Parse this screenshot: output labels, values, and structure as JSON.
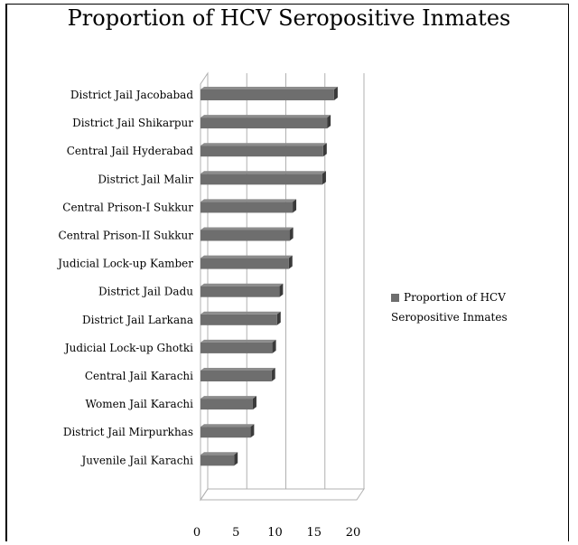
{
  "chart_data": {
    "type": "bar",
    "orientation": "horizontal",
    "title": "Proportion of HCV Seropositive Inmates",
    "categories": [
      "District Jail Jacobabad",
      "District Jail Shikarpur",
      "Central Jail Hyderabad",
      "District Jail Malir",
      "Central Prison-I Sukkur",
      "Central Prison-II Sukkur",
      "Judicial Lock-up Kamber",
      "District Jail Dadu",
      "District Jail Larkana",
      "Judicial Lock-up Ghotki",
      "Central Jail Karachi",
      "Women Jail Karachi",
      "District Jail Mirpurkhas",
      "Juvenile Jail Karachi"
    ],
    "series": [
      {
        "name": "Proportion of HCV Seropositive Inmates",
        "values": [
          17.1,
          16.2,
          15.7,
          15.6,
          11.8,
          11.4,
          11.3,
          10.1,
          9.8,
          9.2,
          9.1,
          6.7,
          6.4,
          4.3
        ]
      }
    ],
    "xlim": [
      0,
      20
    ],
    "xticks": [
      "0",
      "5",
      "10",
      "15",
      "20"
    ],
    "xlabel": "",
    "ylabel": "",
    "grid": true,
    "legend_position": "right",
    "colors": {
      "bar": "#6e6e6e",
      "bar_top": "#8c8c8c",
      "bar_side": "#3a3a3a",
      "grid": "#b0b0b0"
    }
  }
}
